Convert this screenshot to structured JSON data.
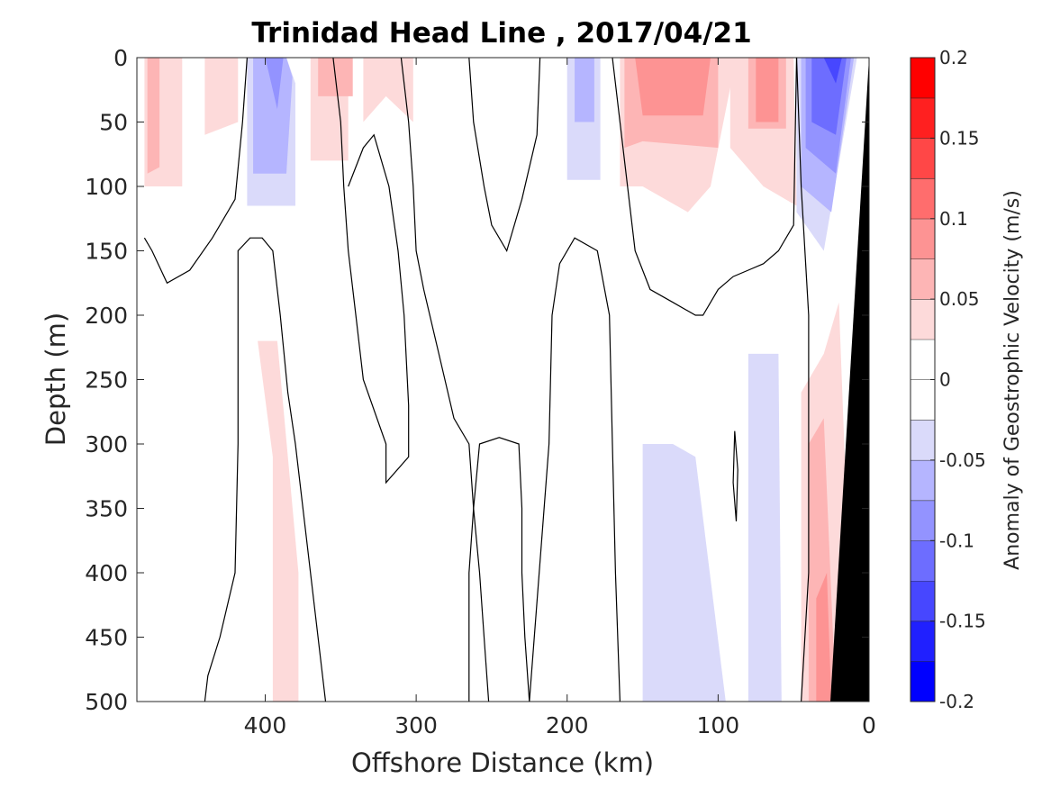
{
  "chart_data": {
    "type": "contour",
    "title": "Trinidad Head Line , 2017/04/21",
    "xlabel": "Offshore Distance (km)",
    "ylabel": "Depth (m)",
    "xlim": [
      485,
      0
    ],
    "ylim": [
      0,
      500
    ],
    "x_reversed": true,
    "y_reversed": true,
    "x_ticks": [
      400,
      300,
      200,
      100,
      0
    ],
    "y_ticks": [
      0,
      50,
      100,
      150,
      200,
      250,
      300,
      350,
      400,
      450,
      500
    ],
    "colorbar": {
      "label": "Anomaly of Geostrophic Velocity (m/s)",
      "range": [
        -0.2,
        0.2
      ],
      "ticks": [
        0.2,
        0.15,
        0.1,
        0.05,
        0,
        -0.05,
        -0.1,
        -0.15,
        -0.2
      ],
      "levels": [
        -0.2,
        -0.175,
        -0.15,
        -0.125,
        -0.1,
        -0.075,
        -0.05,
        -0.025,
        0.025,
        0.05,
        0.075,
        0.1,
        0.125,
        0.15,
        0.175,
        0.2
      ],
      "colors": [
        "#0000ff",
        "#2020ff",
        "#4747ff",
        "#6d6dff",
        "#9393ff",
        "#b5b5ff",
        "#dadafa",
        "#ffffff",
        "#ffffff",
        "#fddada",
        "#fdb5b5",
        "#fd9393",
        "#ff6d6d",
        "#ff4747",
        "#ff2020",
        "#ff0000"
      ]
    },
    "bathymetry_color": "#000000",
    "regions": [
      {
        "level": 0.05,
        "points": [
          [
            480,
            0
          ],
          [
            455,
            0
          ],
          [
            455,
            100
          ],
          [
            480,
            100
          ]
        ]
      },
      {
        "level": 0.075,
        "points": [
          [
            478,
            0
          ],
          [
            470,
            0
          ],
          [
            470,
            85
          ],
          [
            478,
            90
          ]
        ]
      },
      {
        "level": 0.05,
        "points": [
          [
            440,
            0
          ],
          [
            418,
            0
          ],
          [
            418,
            50
          ],
          [
            440,
            60
          ]
        ]
      },
      {
        "level": -0.05,
        "points": [
          [
            412,
            0
          ],
          [
            386,
            0
          ],
          [
            380,
            20
          ],
          [
            380,
            115
          ],
          [
            412,
            115
          ]
        ]
      },
      {
        "level": -0.075,
        "points": [
          [
            408,
            0
          ],
          [
            386,
            0
          ],
          [
            382,
            15
          ],
          [
            386,
            90
          ],
          [
            408,
            90
          ]
        ]
      },
      {
        "level": -0.1,
        "points": [
          [
            400,
            0
          ],
          [
            388,
            0
          ],
          [
            392,
            40
          ]
        ]
      },
      {
        "level": 0.05,
        "points": [
          [
            405,
            220
          ],
          [
            392,
            220
          ],
          [
            378,
            400
          ],
          [
            378,
            500
          ],
          [
            395,
            500
          ],
          [
            395,
            310
          ]
        ]
      },
      {
        "level": 0.05,
        "points": [
          [
            370,
            0
          ],
          [
            345,
            0
          ],
          [
            345,
            80
          ],
          [
            370,
            80
          ]
        ]
      },
      {
        "level": 0.05,
        "points": [
          [
            335,
            0
          ],
          [
            302,
            0
          ],
          [
            302,
            50
          ],
          [
            320,
            30
          ],
          [
            335,
            50
          ]
        ]
      },
      {
        "level": 0.075,
        "points": [
          [
            365,
            0
          ],
          [
            342,
            0
          ],
          [
            342,
            30
          ],
          [
            365,
            30
          ]
        ]
      },
      {
        "level": -0.05,
        "points": [
          [
            200,
            0
          ],
          [
            178,
            0
          ],
          [
            178,
            95
          ],
          [
            200,
            95
          ]
        ]
      },
      {
        "level": -0.075,
        "points": [
          [
            195,
            0
          ],
          [
            182,
            0
          ],
          [
            182,
            50
          ],
          [
            195,
            50
          ]
        ]
      },
      {
        "level": 0.05,
        "points": [
          [
            165,
            0
          ],
          [
            88,
            0
          ],
          [
            105,
            100
          ],
          [
            120,
            120
          ],
          [
            150,
            100
          ],
          [
            165,
            100
          ]
        ]
      },
      {
        "level": 0.075,
        "points": [
          [
            162,
            0
          ],
          [
            100,
            0
          ],
          [
            100,
            70
          ],
          [
            150,
            65
          ],
          [
            162,
            70
          ]
        ]
      },
      {
        "level": 0.1,
        "points": [
          [
            155,
            0
          ],
          [
            105,
            0
          ],
          [
            110,
            45
          ],
          [
            150,
            45
          ]
        ]
      },
      {
        "level": 0.05,
        "points": [
          [
            92,
            0
          ],
          [
            50,
            0
          ],
          [
            48,
            115
          ],
          [
            70,
            100
          ],
          [
            92,
            70
          ]
        ]
      },
      {
        "level": 0.075,
        "points": [
          [
            80,
            0
          ],
          [
            55,
            0
          ],
          [
            55,
            55
          ],
          [
            80,
            55
          ]
        ]
      },
      {
        "level": 0.1,
        "points": [
          [
            75,
            0
          ],
          [
            60,
            0
          ],
          [
            60,
            50
          ],
          [
            75,
            50
          ]
        ]
      },
      {
        "level": -0.05,
        "points": [
          [
            48,
            0
          ],
          [
            8,
            0
          ],
          [
            30,
            150
          ],
          [
            48,
            120
          ]
        ]
      },
      {
        "level": -0.075,
        "points": [
          [
            45,
            0
          ],
          [
            10,
            0
          ],
          [
            25,
            120
          ],
          [
            45,
            100
          ]
        ]
      },
      {
        "level": -0.1,
        "points": [
          [
            42,
            0
          ],
          [
            12,
            0
          ],
          [
            22,
            90
          ],
          [
            42,
            70
          ]
        ]
      },
      {
        "level": -0.125,
        "points": [
          [
            38,
            0
          ],
          [
            15,
            0
          ],
          [
            22,
            60
          ],
          [
            38,
            50
          ]
        ]
      },
      {
        "level": -0.15,
        "points": [
          [
            30,
            0
          ],
          [
            18,
            0
          ],
          [
            22,
            20
          ]
        ]
      },
      {
        "level": -0.05,
        "points": [
          [
            150,
            300
          ],
          [
            130,
            300
          ],
          [
            115,
            310
          ],
          [
            95,
            500
          ],
          [
            150,
            500
          ]
        ]
      },
      {
        "level": -0.05,
        "points": [
          [
            80,
            230
          ],
          [
            60,
            230
          ],
          [
            58,
            500
          ],
          [
            80,
            500
          ]
        ]
      },
      {
        "level": 0.05,
        "points": [
          [
            45,
            260
          ],
          [
            30,
            230
          ],
          [
            20,
            190
          ],
          [
            10,
            500
          ],
          [
            45,
            500
          ]
        ]
      },
      {
        "level": 0.075,
        "points": [
          [
            40,
            300
          ],
          [
            30,
            280
          ],
          [
            22,
            500
          ],
          [
            40,
            500
          ]
        ]
      },
      {
        "level": 0.1,
        "points": [
          [
            35,
            420
          ],
          [
            28,
            400
          ],
          [
            25,
            500
          ],
          [
            35,
            500
          ]
        ]
      }
    ],
    "zero_contours": [
      [
        [
          480,
          140
        ],
        [
          475,
          150
        ],
        [
          465,
          175
        ],
        [
          450,
          165
        ],
        [
          435,
          140
        ],
        [
          420,
          110
        ],
        [
          415,
          50
        ],
        [
          412,
          0
        ]
      ],
      [
        [
          440,
          500
        ],
        [
          438,
          480
        ],
        [
          430,
          450
        ],
        [
          420,
          400
        ],
        [
          418,
          300
        ],
        [
          418,
          150
        ],
        [
          410,
          140
        ],
        [
          402,
          140
        ],
        [
          395,
          150
        ],
        [
          390,
          200
        ],
        [
          385,
          260
        ],
        [
          380,
          300
        ],
        [
          360,
          500
        ]
      ],
      [
        [
          355,
          0
        ],
        [
          350,
          50
        ],
        [
          348,
          100
        ],
        [
          345,
          150
        ],
        [
          340,
          200
        ],
        [
          335,
          250
        ],
        [
          320,
          300
        ],
        [
          320,
          330
        ],
        [
          305,
          310
        ],
        [
          305,
          270
        ],
        [
          308,
          200
        ],
        [
          312,
          150
        ],
        [
          318,
          100
        ],
        [
          328,
          60
        ],
        [
          335,
          70
        ],
        [
          345,
          100
        ]
      ],
      [
        [
          310,
          0
        ],
        [
          305,
          50
        ],
        [
          302,
          100
        ],
        [
          300,
          150
        ],
        [
          295,
          180
        ],
        [
          285,
          230
        ],
        [
          275,
          280
        ],
        [
          265,
          300
        ],
        [
          262,
          350
        ],
        [
          258,
          400
        ],
        [
          255,
          450
        ],
        [
          252,
          500
        ]
      ],
      [
        [
          265,
          0
        ],
        [
          262,
          50
        ],
        [
          255,
          100
        ],
        [
          250,
          130
        ],
        [
          240,
          150
        ],
        [
          230,
          110
        ],
        [
          220,
          60
        ],
        [
          218,
          0
        ]
      ],
      [
        [
          225,
          500
        ],
        [
          228,
          450
        ],
        [
          230,
          400
        ],
        [
          230,
          350
        ],
        [
          232,
          300
        ],
        [
          245,
          295
        ],
        [
          258,
          300
        ],
        [
          262,
          350
        ],
        [
          265,
          400
        ],
        [
          265,
          450
        ],
        [
          265,
          500
        ]
      ],
      [
        [
          170,
          0
        ],
        [
          165,
          50
        ],
        [
          160,
          100
        ],
        [
          155,
          150
        ],
        [
          145,
          180
        ],
        [
          130,
          190
        ],
        [
          115,
          200
        ],
        [
          110,
          200
        ],
        [
          100,
          180
        ],
        [
          90,
          170
        ],
        [
          80,
          165
        ],
        [
          70,
          160
        ],
        [
          60,
          150
        ],
        [
          50,
          130
        ],
        [
          48,
          0
        ]
      ],
      [
        [
          165,
          500
        ],
        [
          168,
          400
        ],
        [
          170,
          300
        ],
        [
          172,
          200
        ],
        [
          180,
          150
        ],
        [
          195,
          140
        ],
        [
          205,
          160
        ],
        [
          210,
          200
        ],
        [
          212,
          300
        ],
        [
          225,
          500
        ]
      ],
      [
        [
          48,
          0
        ],
        [
          45,
          100
        ],
        [
          40,
          200
        ],
        [
          40,
          300
        ],
        [
          40,
          400
        ],
        [
          45,
          500
        ]
      ],
      [
        [
          89,
          290
        ],
        [
          87,
          320
        ],
        [
          88,
          360
        ],
        [
          90,
          330
        ],
        [
          89,
          290
        ]
      ]
    ]
  }
}
